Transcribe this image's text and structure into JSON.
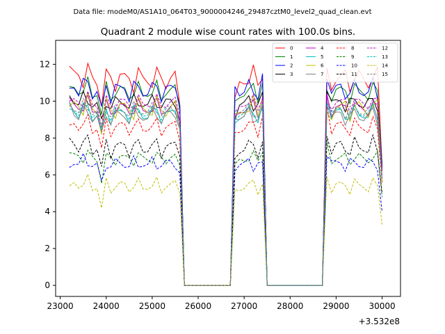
{
  "header": {
    "data_file": "Data file: modeM0/AS1A10_064T03_9000004246_29487cztM0_level2_quad_clean.evt"
  },
  "chart_data": {
    "type": "line",
    "title": "Quadrant 2 module wise count rates with 100.0s bins.",
    "xlabel": "",
    "ylabel": "",
    "x_offset_label": "+3.532e8",
    "xlim": [
      22900,
      30400
    ],
    "ylim": [
      -0.6,
      13.3
    ],
    "xticks": [
      23000,
      24000,
      25000,
      26000,
      27000,
      28000,
      29000,
      30000
    ],
    "xtick_labels": [
      "23000",
      "24000",
      "25000",
      "26000",
      "27000",
      "28000",
      "29000",
      "30000"
    ],
    "yticks": [
      0,
      2,
      4,
      6,
      8,
      10,
      12
    ],
    "ytick_labels": [
      "0",
      "2",
      "4",
      "6",
      "8",
      "10",
      "12"
    ],
    "grid": false,
    "legend_position": "top-right",
    "segments": [
      {
        "start": 23200,
        "n": 25
      },
      {
        "start": 26800,
        "n": 7
      },
      {
        "start": 28800,
        "n": 13
      }
    ],
    "series": [
      {
        "name": "0",
        "color": "#ff0000",
        "dash": "solid",
        "base": 11.2,
        "amp": 0.55,
        "phase": 0.3,
        "seg_start": [
          11.9,
          10.2,
          11.8
        ],
        "seg_end": [
          9.8,
          11.2,
          6.5
        ]
      },
      {
        "name": "1",
        "color": "#008000",
        "dash": "solid",
        "base": 10.5,
        "amp": 0.45,
        "phase": 1.1,
        "seg_start": [
          10.8,
          10.0,
          10.6
        ],
        "seg_end": [
          9.5,
          11.0,
          6.6
        ]
      },
      {
        "name": "2",
        "color": "#0000ff",
        "dash": "solid",
        "base": 10.6,
        "amp": 0.5,
        "phase": 2.0,
        "seg_start": [
          10.7,
          10.8,
          11.2
        ],
        "seg_end": [
          9.8,
          11.5,
          6.4
        ]
      },
      {
        "name": "3",
        "color": "#000000",
        "dash": "solid",
        "base": 9.9,
        "amp": 0.35,
        "phase": 2.7,
        "seg_start": [
          10.3,
          9.0,
          10.5
        ],
        "seg_end": [
          8.9,
          10.5,
          6.2
        ]
      },
      {
        "name": "4",
        "color": "#bf00bf",
        "dash": "solid",
        "base": 9.6,
        "amp": 0.4,
        "phase": 0.9,
        "seg_start": [
          10.2,
          9.2,
          10.4
        ],
        "seg_end": [
          8.9,
          10.2,
          5.9
        ]
      },
      {
        "name": "5",
        "color": "#00bfbf",
        "dash": "solid",
        "base": 9.3,
        "amp": 0.4,
        "phase": 1.8,
        "seg_start": [
          9.9,
          8.8,
          9.8
        ],
        "seg_end": [
          8.6,
          9.9,
          5.8
        ]
      },
      {
        "name": "6",
        "color": "#bfbf00",
        "dash": "solid",
        "base": 9.6,
        "amp": 0.5,
        "phase": 0.5,
        "seg_start": [
          9.7,
          9.3,
          9.4
        ],
        "seg_end": [
          8.4,
          10.1,
          5.6
        ]
      },
      {
        "name": "7",
        "color": "#808080",
        "dash": "solid",
        "base": 9.2,
        "amp": 0.4,
        "phase": 2.4,
        "seg_start": [
          10.0,
          9.0,
          10.0
        ],
        "seg_end": [
          8.5,
          9.7,
          5.9
        ]
      },
      {
        "name": "8",
        "color": "#ff0000",
        "dash": "dashed",
        "base": 8.6,
        "amp": 0.4,
        "phase": 1.4,
        "seg_start": [
          8.7,
          8.3,
          9.8
        ],
        "seg_end": [
          7.8,
          9.2,
          5.6
        ]
      },
      {
        "name": "9",
        "color": "#008000",
        "dash": "dashed",
        "base": 6.9,
        "amp": 0.3,
        "phase": 0.2,
        "seg_start": [
          7.2,
          6.6,
          7.8
        ],
        "seg_end": [
          6.5,
          7.2,
          4.8
        ]
      },
      {
        "name": "10",
        "color": "#0000ff",
        "dash": "dashed",
        "base": 6.6,
        "amp": 0.3,
        "phase": 2.9,
        "seg_start": [
          6.4,
          6.2,
          7.0
        ],
        "seg_end": [
          6.1,
          6.7,
          4.0
        ]
      },
      {
        "name": "11",
        "color": "#000000",
        "dash": "dashed",
        "base": 7.5,
        "amp": 0.45,
        "phase": 1.6,
        "seg_start": [
          8.0,
          6.9,
          8.1
        ],
        "seg_end": [
          7.0,
          7.8,
          5.0
        ]
      },
      {
        "name": "12",
        "color": "#bf00bf",
        "dash": "dashed",
        "base": 9.9,
        "amp": 0.35,
        "phase": 0.7,
        "seg_start": [
          10.0,
          9.4,
          10.2
        ],
        "seg_end": [
          9.2,
          10.1,
          6.2
        ]
      },
      {
        "name": "13",
        "color": "#00bfbf",
        "dash": "dashed",
        "base": 9.4,
        "amp": 0.35,
        "phase": 2.2,
        "seg_start": [
          9.6,
          9.0,
          9.9
        ],
        "seg_end": [
          8.7,
          9.6,
          5.8
        ]
      },
      {
        "name": "14",
        "color": "#bfbf00",
        "dash": "dashed",
        "base": 5.4,
        "amp": 0.35,
        "phase": 1.2,
        "seg_start": [
          5.4,
          5.2,
          5.9
        ],
        "seg_end": [
          5.0,
          5.5,
          3.3
        ]
      },
      {
        "name": "15",
        "color": "#808080",
        "dash": "dashed",
        "base": 9.5,
        "amp": 0.35,
        "phase": 2.6,
        "seg_start": [
          9.8,
          9.2,
          9.6
        ],
        "seg_end": [
          8.6,
          9.7,
          5.9
        ]
      }
    ]
  }
}
